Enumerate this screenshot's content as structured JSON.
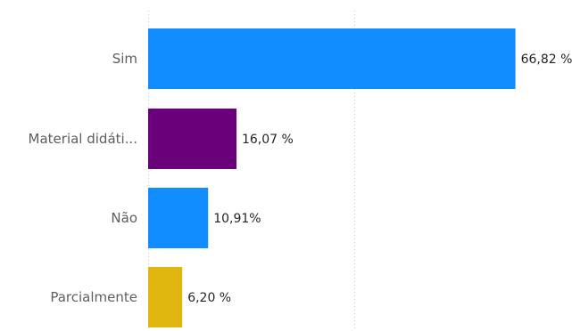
{
  "chart_data": {
    "type": "bar",
    "orientation": "horizontal",
    "categories": [
      "Sim",
      "Material didáti...",
      "Não",
      "Parcialmente"
    ],
    "values": [
      66.82,
      16.07,
      10.91,
      6.2
    ],
    "data_labels": [
      "66,82 %",
      "16,07 %",
      "10,91%",
      "6,20 %"
    ],
    "colors": [
      "#118dff",
      "#6b007b",
      "#118dff",
      "#e0b60e"
    ],
    "title": "",
    "xlabel": "",
    "ylabel": "",
    "xlim": [
      0,
      75
    ],
    "gridlines_x": [
      0,
      37.5
    ],
    "grid": true,
    "legend": "none"
  }
}
